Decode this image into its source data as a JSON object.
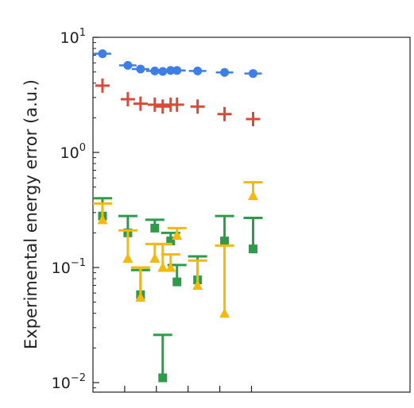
{
  "chart_data": {
    "type": "scatter",
    "ylabel": "Experimental energy error (a.u.)",
    "yscale": "log",
    "ylim": [
      0.01,
      10
    ],
    "xlim": [
      0,
      10
    ],
    "xticks": [
      1,
      2,
      3,
      4,
      5
    ],
    "yticks": [
      {
        "value": 10,
        "base": "10",
        "exp": "1"
      },
      {
        "value": 1,
        "base": "10",
        "exp": "0"
      },
      {
        "value": 0.1,
        "base": "10",
        "exp": "−1"
      },
      {
        "value": 0.01,
        "base": "10",
        "exp": "−2"
      }
    ],
    "grid": false,
    "legend": "none",
    "series": [
      {
        "marker": "circle",
        "color": "#3d7fe6",
        "errorbar": "horizontal",
        "x": [
          0.3,
          1.1,
          1.5,
          1.95,
          2.2,
          2.45,
          2.65,
          3.3,
          4.15,
          5.05
        ],
        "y": [
          7.2,
          5.7,
          5.3,
          5.1,
          5.05,
          5.15,
          5.15,
          5.1,
          4.95,
          4.85
        ]
      },
      {
        "marker": "plus",
        "color": "#d94a38",
        "x": [
          0.3,
          1.1,
          1.5,
          1.95,
          2.2,
          2.45,
          2.65,
          3.3,
          4.15,
          5.05
        ],
        "y": [
          3.8,
          2.9,
          2.65,
          2.6,
          2.5,
          2.6,
          2.6,
          2.5,
          2.15,
          1.95
        ]
      },
      {
        "marker": "square",
        "color": "#2e9b4b",
        "errorbar": "upper",
        "x": [
          0.3,
          1.1,
          1.5,
          1.95,
          2.2,
          2.45,
          2.65,
          3.3,
          4.15,
          5.05
        ],
        "y": [
          0.28,
          0.2,
          0.058,
          0.22,
          0.011,
          0.17,
          0.075,
          0.078,
          0.17,
          0.145
        ],
        "upper": [
          0.4,
          0.28,
          0.095,
          0.26,
          0.026,
          0.2,
          0.105,
          0.125,
          0.28,
          0.27
        ]
      },
      {
        "marker": "triangle",
        "color": "#f2b90f",
        "errorbar": "upper",
        "x": [
          0.3,
          1.1,
          1.5,
          1.95,
          2.2,
          2.45,
          2.65,
          3.3,
          4.15,
          5.05
        ],
        "y": [
          0.26,
          0.12,
          0.055,
          0.12,
          0.1,
          0.1,
          0.19,
          0.07,
          0.04,
          0.42
        ],
        "upper": [
          0.36,
          0.21,
          0.1,
          0.16,
          0.16,
          0.13,
          0.22,
          0.115,
          0.155,
          0.55
        ]
      }
    ]
  }
}
